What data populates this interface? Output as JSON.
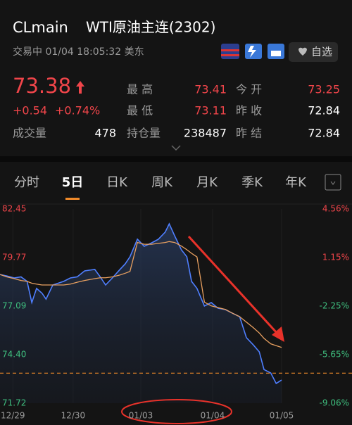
{
  "header": {
    "symbol": "CLmain",
    "name": "WTI原油主连(2302)",
    "status": "交易中 01/04 18:05:32 美东",
    "watch": "自选"
  },
  "quote": {
    "price": 73.38,
    "change": "+0.54",
    "change_pct": "+0.74%",
    "stats": [
      [
        {
          "label": "最 高",
          "value": 73.41,
          "color": "#f0454a"
        },
        {
          "label": "今 开",
          "value": 73.25,
          "color": "#f0454a"
        }
      ],
      [
        {
          "label": "最 低",
          "value": 73.11,
          "color": "#f0454a"
        },
        {
          "label": "昨 收",
          "value": 72.84,
          "color": "#ffffff"
        }
      ],
      [
        {
          "label": "成交量",
          "value": 478,
          "color": "#ffffff"
        },
        {
          "label": "持仓量",
          "value": 238487,
          "color": "#ffffff"
        },
        {
          "label": "昨 结",
          "value": 72.84,
          "color": "#ffffff"
        }
      ]
    ]
  },
  "tabs": {
    "items": [
      "分时",
      "5日",
      "日K",
      "周K",
      "月K",
      "季K",
      "年K"
    ],
    "active": 1
  },
  "chart_data": {
    "type": "line",
    "x": [
      0,
      0.1,
      0.21,
      0.31,
      0.4,
      0.47,
      0.54,
      0.62,
      0.68,
      0.78,
      0.94,
      1.04,
      1.14,
      1.25,
      1.4,
      1.48,
      1.56,
      1.66,
      1.77,
      1.85,
      1.92,
      2.03,
      2.13,
      2.24,
      2.34,
      2.44,
      2.5,
      2.58,
      2.68,
      2.76,
      2.83,
      2.91,
      3.02,
      3.12,
      3.22,
      3.33,
      3.43,
      3.54,
      3.64,
      3.74,
      3.83,
      3.9,
      4.0,
      4.08,
      4.16
    ],
    "series": [
      {
        "color": "#4f7fff",
        "values": [
          78.83,
          78.75,
          78.64,
          78.7,
          78.45,
          77.28,
          78.06,
          77.8,
          77.47,
          78.25,
          78.45,
          78.64,
          78.7,
          79.03,
          79.11,
          78.7,
          78.25,
          78.64,
          79.1,
          79.42,
          79.81,
          80.78,
          80.39,
          80.58,
          80.78,
          81.17,
          81.63,
          80.97,
          80.19,
          79.81,
          78.45,
          78.06,
          77.09,
          77.28,
          76.97,
          76.89,
          76.7,
          76.5,
          75.34,
          74.95,
          74.56,
          73.58,
          73.39,
          72.81,
          73.0
        ]
      },
      {
        "color": "#e8a060",
        "values": [
          78.83,
          78.7,
          78.6,
          78.5,
          78.45,
          78.35,
          78.3,
          78.25,
          78.25,
          78.25,
          78.25,
          78.3,
          78.4,
          78.5,
          78.6,
          78.65,
          78.65,
          78.7,
          78.8,
          78.9,
          79.0,
          80.6,
          80.5,
          80.5,
          80.55,
          80.6,
          80.65,
          80.6,
          80.4,
          80.2,
          80.0,
          79.8,
          77.3,
          77.1,
          77.0,
          76.9,
          76.7,
          76.5,
          76.2,
          75.9,
          75.6,
          75.3,
          75.0,
          74.9,
          74.8
        ]
      }
    ],
    "xlim": [
      0,
      5.2
    ],
    "xticks": [
      {
        "value": 0.19,
        "label": "12/29"
      },
      {
        "value": 1.08,
        "label": "12/30"
      },
      {
        "value": 2.08,
        "label": "01/03"
      },
      {
        "value": 3.14,
        "label": "01/04"
      },
      {
        "value": 4.16,
        "label": "01/05"
      }
    ],
    "ylim": [
      71.72,
      82.45
    ],
    "yticks": [
      82.45,
      79.77,
      77.09,
      {
        "value": 74.4,
        "label": "74.40"
      },
      71.72
    ],
    "y2lim": [
      -9.06,
      4.56
    ],
    "y2ticks": [
      {
        "value": 4.56,
        "label": "4.56%"
      },
      {
        "value": 1.15,
        "label": "1.15%"
      },
      {
        "value": -2.25,
        "label": "-2.25%"
      },
      {
        "value": -5.65,
        "label": "-5.65%"
      },
      {
        "value": -9.06,
        "label": "-9.06%"
      }
    ],
    "grid": false
  }
}
